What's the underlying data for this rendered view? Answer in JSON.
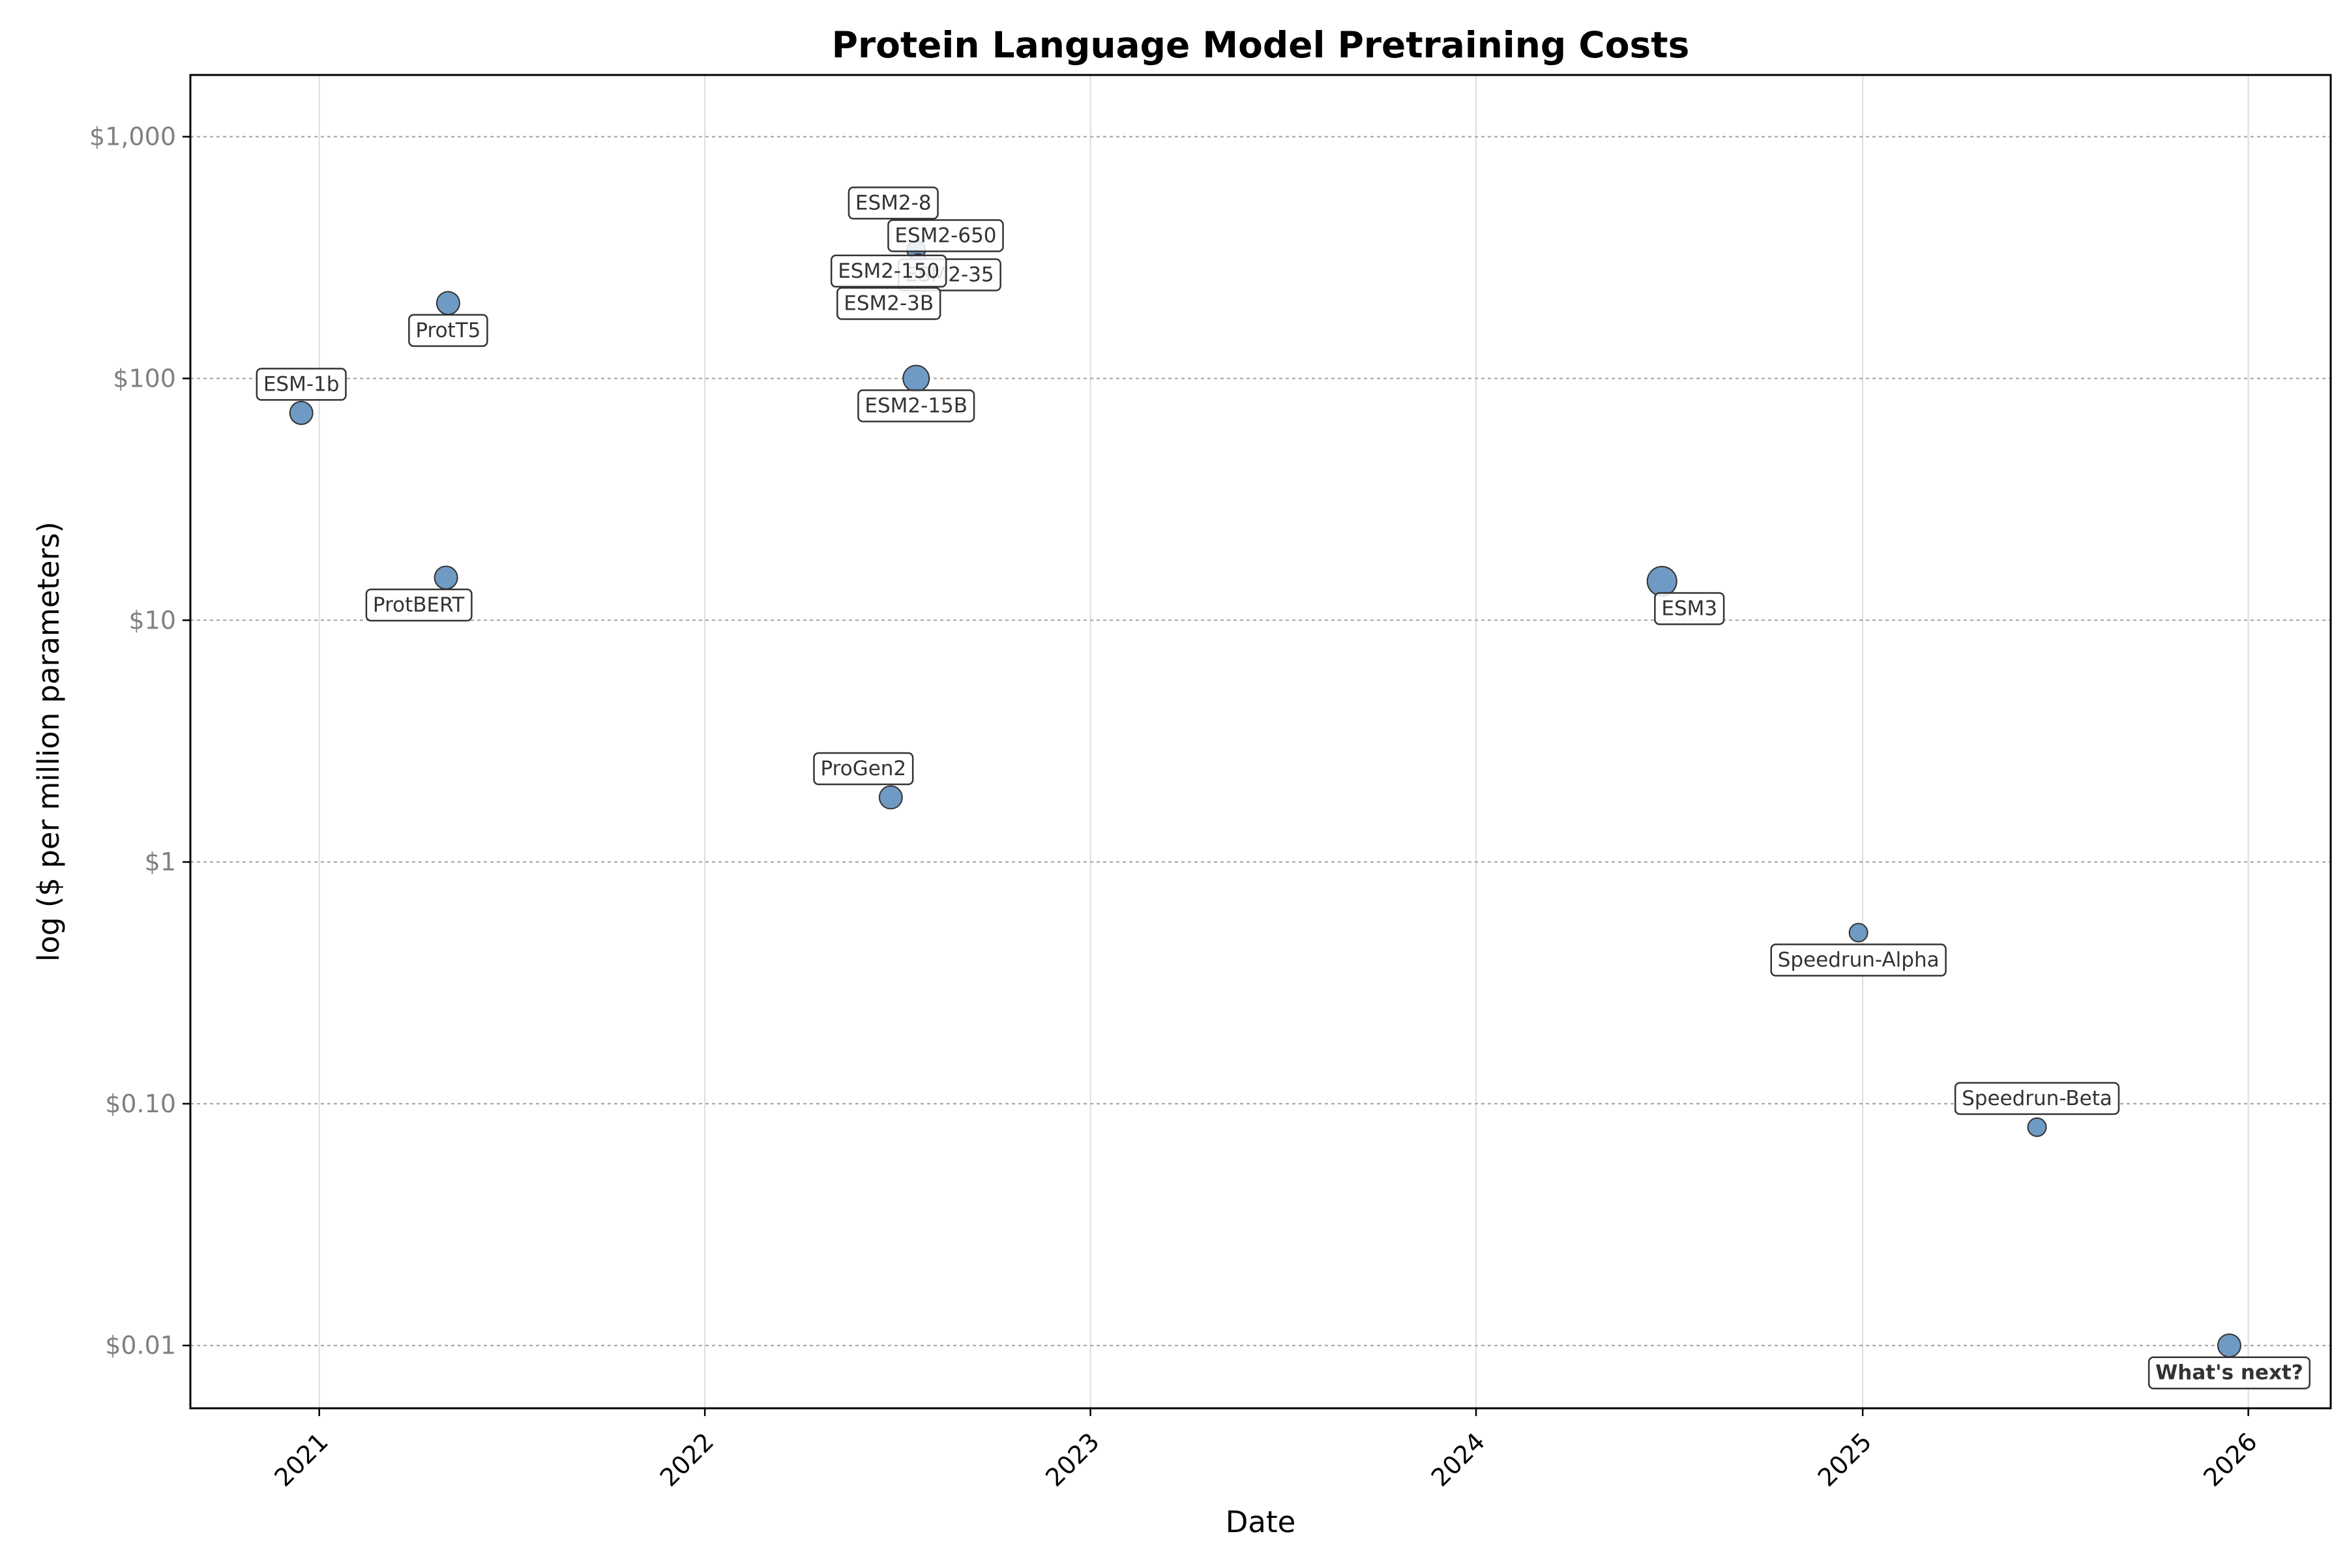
{
  "chart_data": {
    "type": "scatter",
    "title": "Protein Language Model Pretraining Costs",
    "xlabel": "Date",
    "ylabel": "log ($ per million parameters)",
    "yscale": "log",
    "ylim": [
      0.0055,
      1800
    ],
    "xlim": [
      "2020-09-01",
      "2026-03-20"
    ],
    "x_ticks": [
      {
        "date": "2021-01-01",
        "label": "2021"
      },
      {
        "date": "2022-01-01",
        "label": "2022"
      },
      {
        "date": "2023-01-01",
        "label": "2023"
      },
      {
        "date": "2024-01-01",
        "label": "2024"
      },
      {
        "date": "2025-01-01",
        "label": "2025"
      },
      {
        "date": "2026-01-01",
        "label": "2026"
      }
    ],
    "y_ticks": [
      {
        "value": 1000,
        "label": "$1,000"
      },
      {
        "value": 100,
        "label": "$100"
      },
      {
        "value": 10,
        "label": "$10"
      },
      {
        "value": 1,
        "label": "$1"
      },
      {
        "value": 0.1,
        "label": "$0.10"
      },
      {
        "value": 0.01,
        "label": "$0.01"
      }
    ],
    "grid": true,
    "marker_color": "#6f9ac4",
    "marker_edge_color": "#333333",
    "points": [
      {
        "label": "ESM-1b",
        "date": "2020-12-15",
        "value": 72,
        "size": "medium",
        "label_pos": "above"
      },
      {
        "label": "ProtT5",
        "date": "2021-05-03",
        "value": 205,
        "size": "medium",
        "label_pos": "below"
      },
      {
        "label": "ProtBERT",
        "date": "2021-05-01",
        "value": 15,
        "size": "medium",
        "label_pos": "below-left"
      },
      {
        "label": "ProGen2",
        "date": "2022-06-26",
        "value": 1.85,
        "size": "medium",
        "label_pos": "above-left"
      },
      {
        "label": "ESM2-8",
        "date": "2022-07-20",
        "value": 340,
        "size": "small",
        "label_pos": "far-above"
      },
      {
        "label": "ESM2-650",
        "date": "2022-07-22",
        "value": 300,
        "size": "small",
        "label_pos": "above-right"
      },
      {
        "label": "ESM2-35",
        "date": "2022-07-22",
        "value": 275,
        "size": "small",
        "label_pos": "right"
      },
      {
        "label": "ESM2-150",
        "date": "2022-07-20",
        "value": 285,
        "size": "small",
        "label_pos": "left"
      },
      {
        "label": "ESM2-3B",
        "date": "2022-07-20",
        "value": 265,
        "size": "small",
        "label_pos": "below-left"
      },
      {
        "label": "ESM2-15B",
        "date": "2022-07-20",
        "value": 100,
        "size": "large",
        "label_pos": "below"
      },
      {
        "label": "ESM3",
        "date": "2024-06-25",
        "value": 14.5,
        "size": "xlarge",
        "label_pos": "below-right"
      },
      {
        "label": "Speedrun-Alpha",
        "date": "2024-12-28",
        "value": 0.51,
        "size": "small",
        "label_pos": "below"
      },
      {
        "label": "Speedrun-Beta",
        "date": "2025-06-15",
        "value": 0.08,
        "size": "small",
        "label_pos": "above"
      },
      {
        "label": "What's next?",
        "date": "2025-12-14",
        "value": 0.01,
        "size": "medium",
        "label_pos": "below",
        "bold": true
      }
    ]
  }
}
